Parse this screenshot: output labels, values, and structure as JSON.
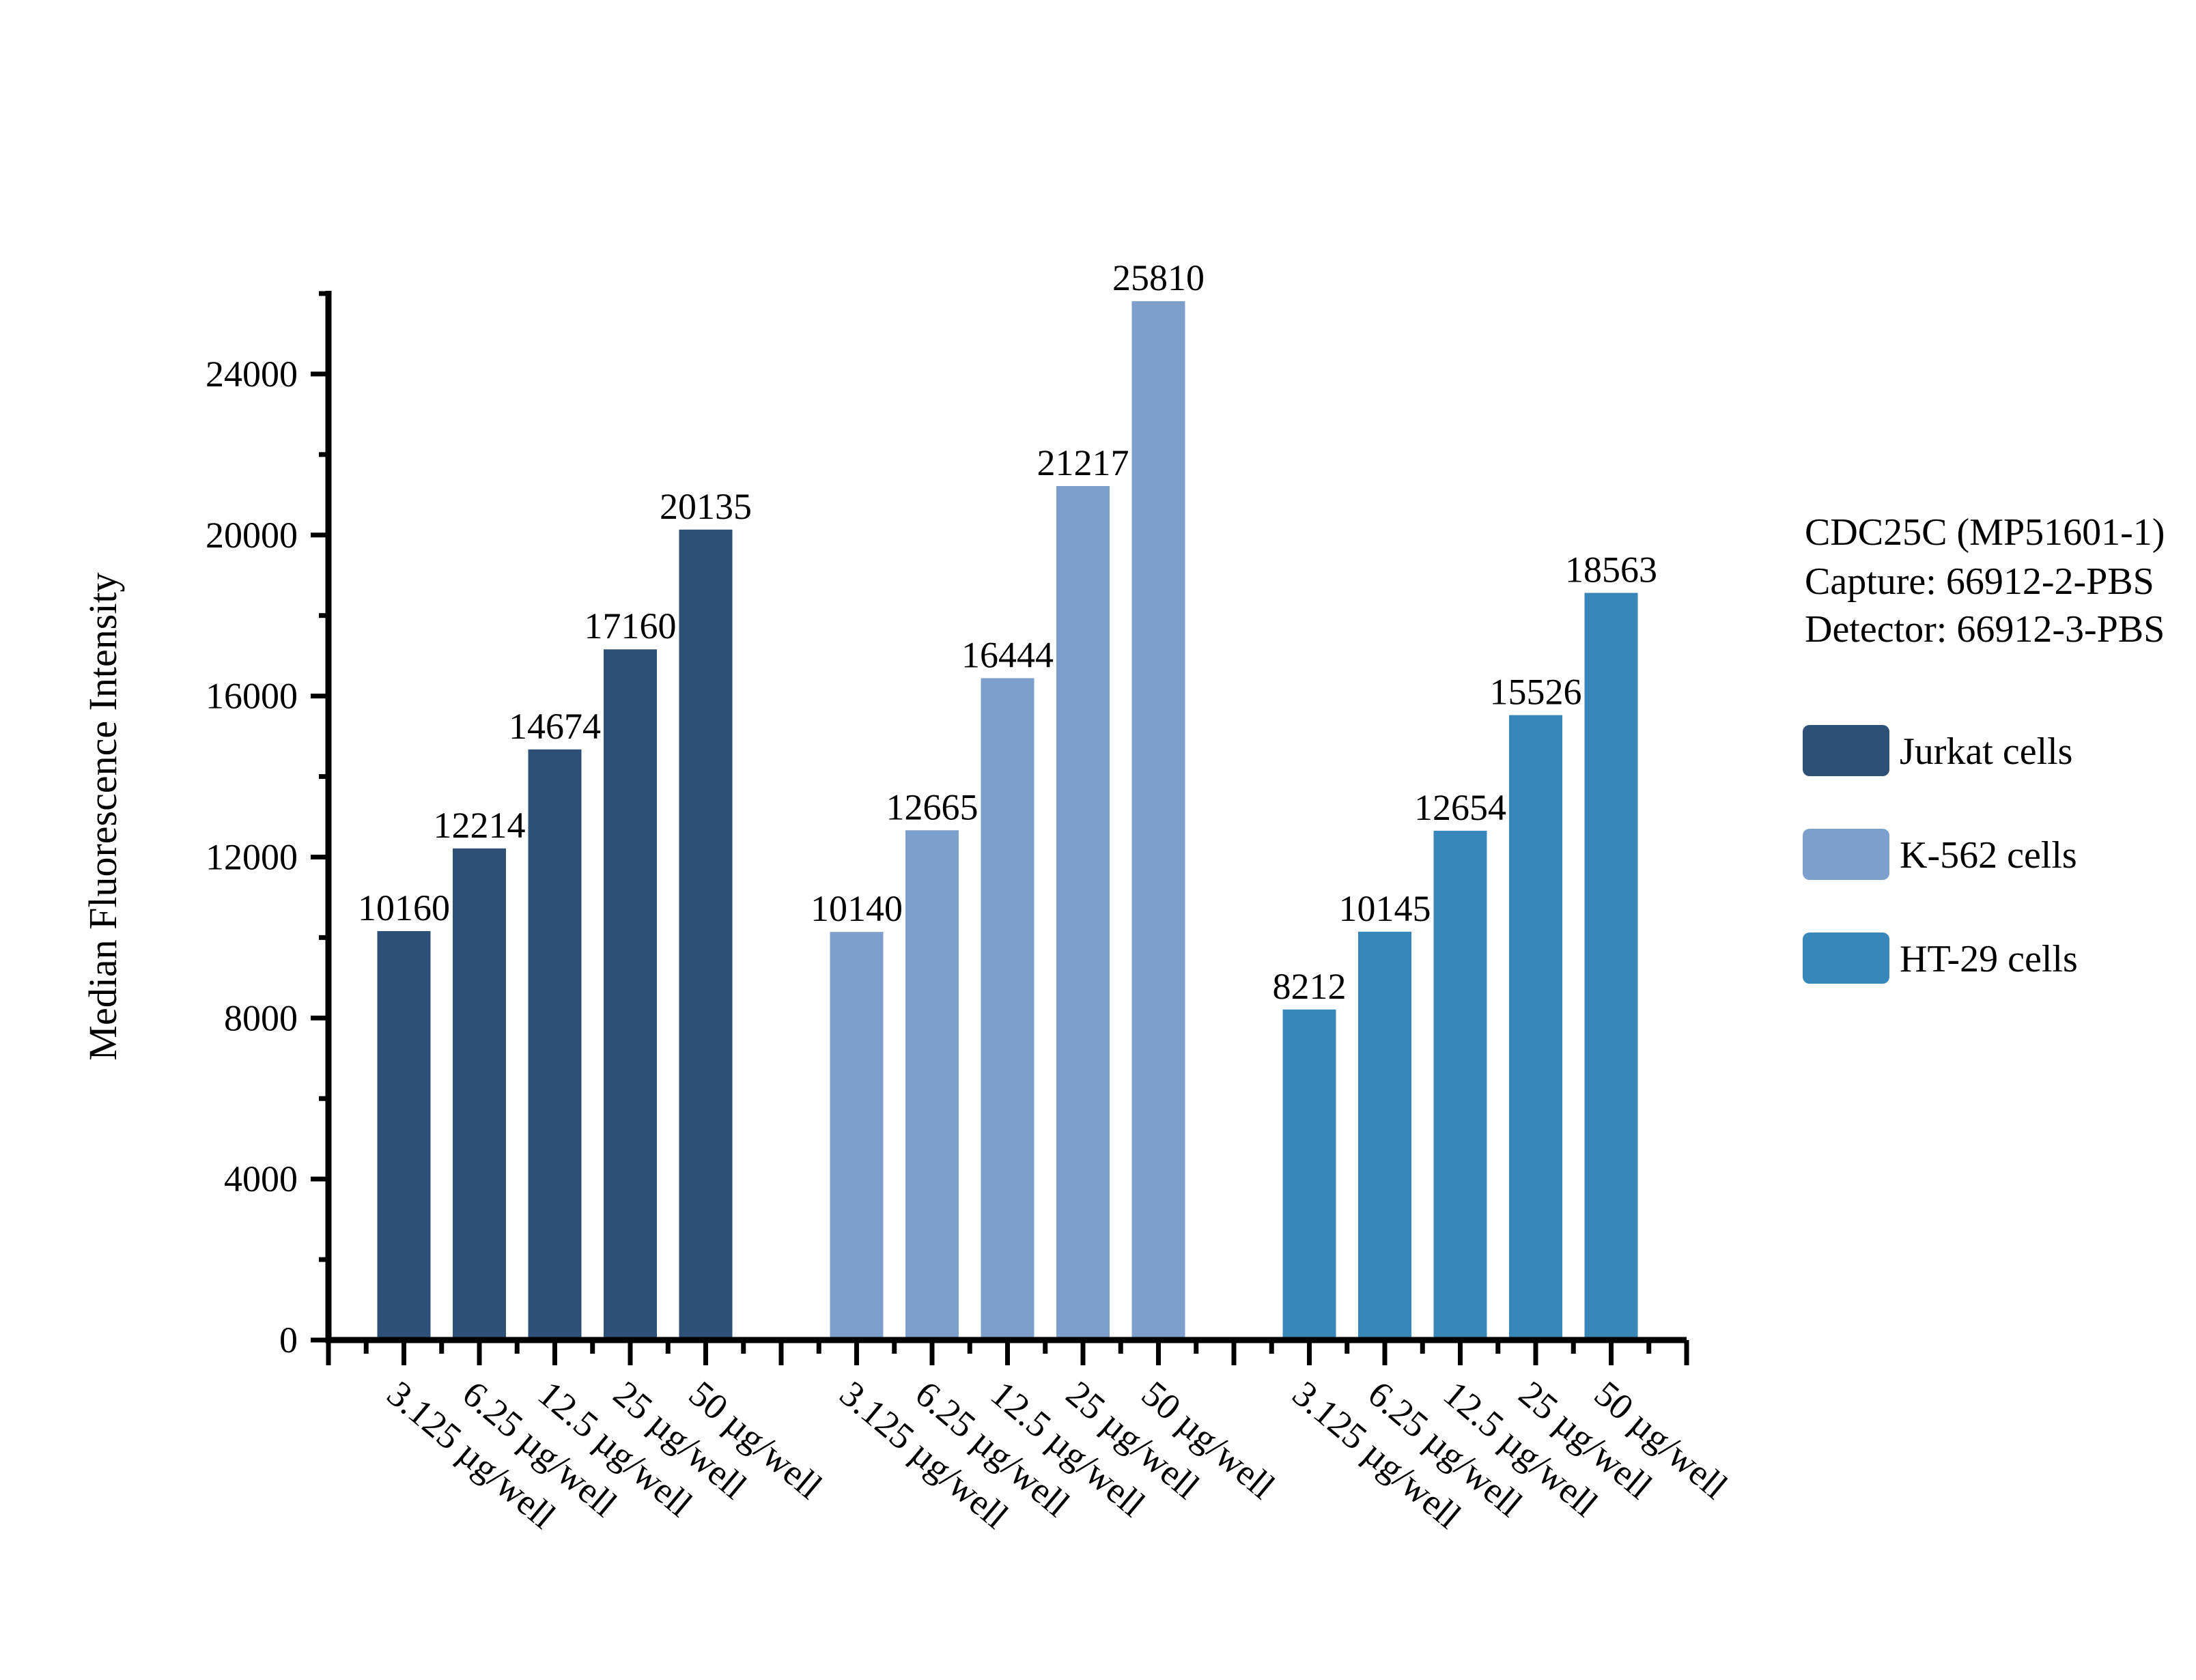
{
  "annotation": {
    "line1": "CDC25C (MP51601-1)",
    "line2": "Capture: 66912-2-PBS",
    "line3": "Detector: 66912-3-PBS"
  },
  "chart_data": {
    "type": "bar",
    "title": "",
    "xlabel": "",
    "ylabel": "Median Fluorescence Intensity",
    "categories": [
      "3.125 µg/well",
      "6.25 µg/well",
      "12.5 µg/well",
      "25 µg/well",
      "50 µg/well"
    ],
    "series": [
      {
        "name": "Jurkat cells",
        "color": "#2E4F76",
        "values": [
          10160,
          12214,
          14674,
          17160,
          20135
        ]
      },
      {
        "name": "K-562 cells",
        "color": "#7D9FCC",
        "values": [
          10140,
          12665,
          16444,
          21217,
          25810
        ]
      },
      {
        "name": "HT-29 cells",
        "color": "#3787B8",
        "values": [
          8212,
          10145,
          12654,
          15526,
          18563
        ]
      }
    ],
    "ylim": [
      0,
      26000
    ],
    "y_major_step": 4000,
    "y_minor_step": 2000,
    "y_tick_labels": [
      "0",
      "4000",
      "8000",
      "12000",
      "16000",
      "20000",
      "24000"
    ],
    "grid": false,
    "bar_labels": true,
    "legend_position": "right"
  }
}
